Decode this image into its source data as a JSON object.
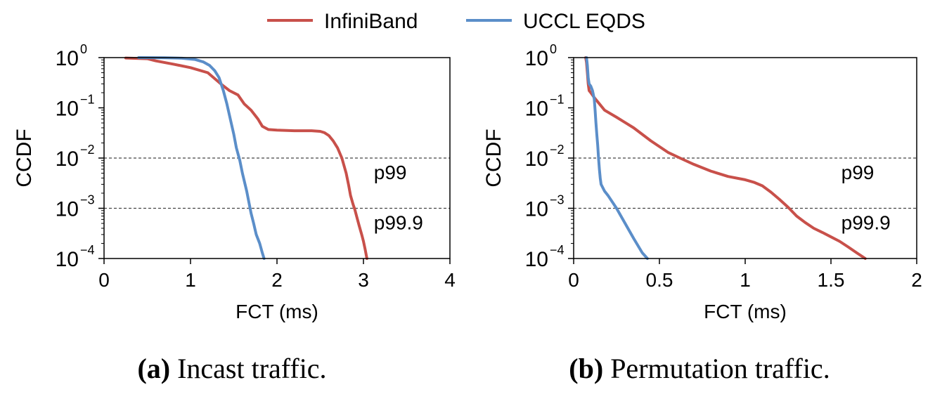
{
  "legend": {
    "entries": [
      {
        "label": "InfiniBand",
        "color": "#c8504a"
      },
      {
        "label": "UCCL EQDS",
        "color": "#5b8ec9"
      }
    ]
  },
  "chart_data": [
    {
      "type": "line",
      "caption_label": "(a)",
      "caption_text": " Incast traffic.",
      "xlabel": "FCT (ms)",
      "ylabel": "CCDF",
      "yscale": "log",
      "xlim": [
        0,
        4
      ],
      "ylim": [
        0.0001,
        1
      ],
      "xticks": [
        0,
        1,
        2,
        3,
        4
      ],
      "xtick_labels": [
        "0",
        "1",
        "2",
        "3",
        "4"
      ],
      "yticks": [
        {
          "value": 1,
          "base": "10",
          "exp": "0"
        },
        {
          "value": 0.1,
          "base": "10",
          "exp": "−1"
        },
        {
          "value": 0.01,
          "base": "10",
          "exp": "−2"
        },
        {
          "value": 0.001,
          "base": "10",
          "exp": "−3"
        },
        {
          "value": 0.0001,
          "base": "10",
          "exp": "−4"
        }
      ],
      "hlines": [
        {
          "y": 0.01,
          "label": "p99"
        },
        {
          "y": 0.001,
          "label": "p99.9"
        }
      ],
      "series": [
        {
          "name": "InfiniBand",
          "color": "#c8504a",
          "x": [
            0.25,
            0.5,
            0.6,
            0.8,
            1.0,
            1.2,
            1.35,
            1.45,
            1.55,
            1.62,
            1.7,
            1.78,
            1.83,
            1.9,
            2.0,
            2.2,
            2.4,
            2.5,
            2.55,
            2.6,
            2.65,
            2.7,
            2.75,
            2.8,
            2.83,
            2.85,
            2.88,
            2.9,
            2.92,
            2.95,
            2.98,
            3.0,
            3.02,
            3.04
          ],
          "y": [
            0.98,
            0.95,
            0.86,
            0.74,
            0.63,
            0.5,
            0.3,
            0.22,
            0.18,
            0.12,
            0.09,
            0.06,
            0.043,
            0.037,
            0.036,
            0.035,
            0.035,
            0.034,
            0.032,
            0.028,
            0.022,
            0.016,
            0.01,
            0.005,
            0.0028,
            0.0018,
            0.0012,
            0.00095,
            0.0007,
            0.00045,
            0.0003,
            0.00022,
            0.00015,
            0.0001
          ]
        },
        {
          "name": "UCCL EQDS",
          "color": "#5b8ec9",
          "x": [
            0.4,
            0.7,
            0.9,
            1.05,
            1.15,
            1.22,
            1.28,
            1.33,
            1.38,
            1.42,
            1.46,
            1.5,
            1.53,
            1.57,
            1.6,
            1.65,
            1.68,
            1.7,
            1.73,
            1.76,
            1.8,
            1.83,
            1.85
          ],
          "y": [
            1.0,
            0.99,
            0.97,
            0.92,
            0.82,
            0.7,
            0.55,
            0.4,
            0.22,
            0.12,
            0.06,
            0.03,
            0.016,
            0.009,
            0.005,
            0.0022,
            0.0012,
            0.0008,
            0.0005,
            0.0003,
            0.0002,
            0.00013,
            0.0001
          ]
        }
      ]
    },
    {
      "type": "line",
      "caption_label": "(b)",
      "caption_text": " Permutation traffic.",
      "xlabel": "FCT (ms)",
      "ylabel": "CCDF",
      "yscale": "log",
      "xlim": [
        0,
        2
      ],
      "ylim": [
        0.0001,
        1
      ],
      "xticks": [
        0,
        0.5,
        1,
        1.5,
        2
      ],
      "xtick_labels": [
        "0",
        "0.5",
        "1",
        "1.5",
        "2"
      ],
      "yticks": [
        {
          "value": 1,
          "base": "10",
          "exp": "0"
        },
        {
          "value": 0.1,
          "base": "10",
          "exp": "−1"
        },
        {
          "value": 0.01,
          "base": "10",
          "exp": "−2"
        },
        {
          "value": 0.001,
          "base": "10",
          "exp": "−3"
        },
        {
          "value": 0.0001,
          "base": "10",
          "exp": "−4"
        }
      ],
      "hlines": [
        {
          "y": 0.01,
          "label": "p99"
        },
        {
          "y": 0.001,
          "label": "p99.9"
        }
      ],
      "series": [
        {
          "name": "InfiniBand",
          "color": "#c8504a",
          "x": [
            0.07,
            0.075,
            0.08,
            0.085,
            0.09,
            0.1,
            0.12,
            0.15,
            0.18,
            0.25,
            0.35,
            0.45,
            0.55,
            0.62,
            0.7,
            0.8,
            0.9,
            1.0,
            1.05,
            1.1,
            1.15,
            1.2,
            1.25,
            1.3,
            1.35,
            1.4,
            1.45,
            1.5,
            1.55,
            1.6,
            1.65,
            1.7
          ],
          "y": [
            1.0,
            0.8,
            0.5,
            0.3,
            0.22,
            0.2,
            0.16,
            0.12,
            0.09,
            0.065,
            0.04,
            0.022,
            0.013,
            0.01,
            0.0075,
            0.0055,
            0.0043,
            0.0037,
            0.0033,
            0.0028,
            0.0021,
            0.0015,
            0.00105,
            0.0007,
            0.00052,
            0.0004,
            0.00033,
            0.00027,
            0.00022,
            0.00017,
            0.00013,
            0.0001
          ]
        },
        {
          "name": "UCCL EQDS",
          "color": "#5b8ec9",
          "x": [
            0.075,
            0.08,
            0.085,
            0.09,
            0.1,
            0.11,
            0.12,
            0.125,
            0.13,
            0.135,
            0.14,
            0.145,
            0.15,
            0.155,
            0.16,
            0.18,
            0.2,
            0.25,
            0.3,
            0.35,
            0.4,
            0.43
          ],
          "y": [
            1.0,
            0.7,
            0.4,
            0.3,
            0.27,
            0.22,
            0.15,
            0.09,
            0.05,
            0.03,
            0.018,
            0.01,
            0.006,
            0.004,
            0.003,
            0.0022,
            0.0018,
            0.001,
            0.0005,
            0.00025,
            0.00013,
            0.0001
          ]
        }
      ]
    }
  ]
}
